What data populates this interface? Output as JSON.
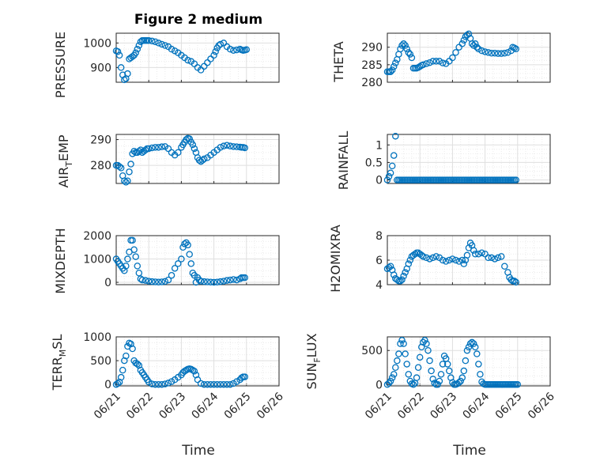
{
  "figure": {
    "title": "Figure 2 medium",
    "accent_color": "#0072BD"
  },
  "chart_data": [
    {
      "type": "scatter",
      "var": "pressure",
      "title": "Figure 2 medium",
      "ylabel": "PRESSURE",
      "ylim": [
        840,
        1040
      ],
      "yticks": [
        900,
        1000
      ],
      "xlim": [
        0,
        5
      ],
      "xticks": [
        "06/21",
        "06/22",
        "06/23",
        "06/24",
        "06/25",
        "06/26"
      ],
      "xlabel": "",
      "x": [
        0.0,
        0.05,
        0.1,
        0.15,
        0.2,
        0.25,
        0.3,
        0.35,
        0.4,
        0.45,
        0.5,
        0.55,
        0.6,
        0.65,
        0.7,
        0.75,
        0.8,
        0.85,
        0.9,
        0.95,
        1.0,
        1.1,
        1.2,
        1.3,
        1.4,
        1.5,
        1.6,
        1.7,
        1.8,
        1.9,
        2.0,
        2.1,
        2.2,
        2.3,
        2.4,
        2.5,
        2.6,
        2.7,
        2.8,
        2.9,
        3.0,
        3.05,
        3.1,
        3.15,
        3.2,
        3.3,
        3.4,
        3.5,
        3.6,
        3.7,
        3.8,
        3.85,
        3.9,
        3.95,
        4.0
      ],
      "y": [
        968,
        965,
        950,
        900,
        870,
        850,
        855,
        875,
        935,
        940,
        945,
        950,
        960,
        975,
        990,
        1005,
        1010,
        1010,
        1010,
        1010,
        1010,
        1008,
        1005,
        1000,
        995,
        990,
        985,
        975,
        968,
        960,
        950,
        940,
        930,
        925,
        915,
        900,
        890,
        905,
        920,
        935,
        950,
        965,
        980,
        990,
        995,
        1000,
        985,
        975,
        970,
        972,
        975,
        972,
        970,
        971,
        973
      ]
    },
    {
      "type": "scatter",
      "var": "theta",
      "title": "",
      "ylabel": "THETA",
      "ylim": [
        280,
        294
      ],
      "yticks": [
        280,
        285,
        290
      ],
      "xlim": [
        0,
        5
      ],
      "xticks": [
        "06/21",
        "06/22",
        "06/23",
        "06/24",
        "06/25",
        "06/26"
      ],
      "xlabel": "",
      "x": [
        0.0,
        0.05,
        0.1,
        0.15,
        0.2,
        0.25,
        0.3,
        0.35,
        0.4,
        0.45,
        0.5,
        0.55,
        0.6,
        0.65,
        0.7,
        0.75,
        0.8,
        0.85,
        0.9,
        0.95,
        1.0,
        1.05,
        1.1,
        1.2,
        1.3,
        1.4,
        1.5,
        1.6,
        1.7,
        1.8,
        1.9,
        2.0,
        2.1,
        2.2,
        2.3,
        2.35,
        2.4,
        2.45,
        2.5,
        2.55,
        2.6,
        2.65,
        2.7,
        2.75,
        2.8,
        2.9,
        3.0,
        3.1,
        3.2,
        3.3,
        3.4,
        3.5,
        3.6,
        3.7,
        3.8,
        3.85,
        3.9,
        3.95
      ],
      "y": [
        283,
        283,
        283,
        283.5,
        284.5,
        285.5,
        286.5,
        288,
        289.5,
        290.5,
        291,
        290.5,
        289.5,
        288.5,
        288,
        287,
        284,
        284,
        284,
        284.2,
        284.5,
        284.8,
        285,
        285.3,
        285.6,
        286,
        286,
        286,
        285.5,
        285.3,
        286,
        287,
        288.5,
        290,
        291,
        292,
        293,
        293.5,
        293.8,
        292.5,
        291,
        290.5,
        291,
        290,
        289.5,
        289,
        288.7,
        288.5,
        288.3,
        288.3,
        288.2,
        288.2,
        288.3,
        288.5,
        289,
        290,
        289.8,
        289.5
      ]
    },
    {
      "type": "scatter",
      "var": "air_temp",
      "title": "",
      "ylabel": "AIR_TEMP",
      "ylim": [
        273,
        292
      ],
      "yticks": [
        280,
        290
      ],
      "xlim": [
        0,
        5
      ],
      "xticks": [
        "06/21",
        "06/22",
        "06/23",
        "06/24",
        "06/25",
        "06/26"
      ],
      "xlabel": "",
      "x": [
        0.0,
        0.05,
        0.1,
        0.15,
        0.2,
        0.25,
        0.3,
        0.35,
        0.4,
        0.45,
        0.5,
        0.55,
        0.6,
        0.65,
        0.7,
        0.75,
        0.8,
        0.85,
        0.9,
        0.95,
        1.0,
        1.1,
        1.2,
        1.3,
        1.4,
        1.5,
        1.6,
        1.7,
        1.8,
        1.9,
        2.0,
        2.05,
        2.1,
        2.15,
        2.2,
        2.25,
        2.3,
        2.35,
        2.4,
        2.45,
        2.5,
        2.55,
        2.6,
        2.65,
        2.7,
        2.8,
        2.9,
        3.0,
        3.1,
        3.2,
        3.3,
        3.4,
        3.5,
        3.6,
        3.7,
        3.8,
        3.85,
        3.9,
        3.95
      ],
      "y": [
        280,
        280,
        279.5,
        279,
        276,
        274,
        273.5,
        274,
        277.5,
        280.5,
        284.5,
        285.5,
        285,
        285,
        285.5,
        286,
        285,
        285.5,
        286,
        286.5,
        286.5,
        286.8,
        287,
        287,
        287.2,
        287.3,
        286.5,
        285,
        284,
        285,
        287,
        288,
        289,
        290,
        290.5,
        290.3,
        289,
        288,
        286.5,
        285,
        283,
        282,
        281.5,
        282,
        282.5,
        283,
        284,
        285,
        286,
        287,
        287.5,
        287.8,
        287.5,
        287.3,
        287.2,
        287.1,
        287,
        287,
        286.8
      ]
    },
    {
      "type": "scatter",
      "var": "rainfall",
      "title": "",
      "ylabel": "RAINFALL",
      "ylim": [
        -0.1,
        1.3
      ],
      "yticks": [
        0,
        0.5,
        1
      ],
      "xlim": [
        0,
        5
      ],
      "xticks": [
        "06/21",
        "06/22",
        "06/23",
        "06/24",
        "06/25",
        "06/26"
      ],
      "xlabel": "",
      "x": [
        0.0,
        0.05,
        0.1,
        0.15,
        0.2,
        0.25,
        0.3,
        0.35,
        0.4,
        0.45,
        0.5,
        0.55,
        0.6,
        0.65,
        0.7,
        0.75,
        0.8,
        0.85,
        0.9,
        0.95,
        1.0,
        1.05,
        1.1,
        1.15,
        1.2,
        1.25,
        1.3,
        1.35,
        1.4,
        1.45,
        1.5,
        1.55,
        1.6,
        1.65,
        1.7,
        1.75,
        1.8,
        1.85,
        1.9,
        1.95,
        2.0,
        2.05,
        2.1,
        2.15,
        2.2,
        2.25,
        2.3,
        2.35,
        2.4,
        2.45,
        2.5,
        2.55,
        2.6,
        2.65,
        2.7,
        2.75,
        2.8,
        2.85,
        2.9,
        2.95,
        3.0,
        3.05,
        3.1,
        3.15,
        3.2,
        3.25,
        3.3,
        3.35,
        3.4,
        3.45,
        3.5,
        3.55,
        3.6,
        3.65,
        3.7,
        3.75,
        3.8,
        3.85,
        3.9,
        3.95
      ],
      "y": [
        0,
        0.1,
        0.2,
        0.4,
        0.7,
        1.25,
        0,
        0,
        0,
        0,
        0,
        0,
        0,
        0,
        0,
        0,
        0,
        0,
        0,
        0,
        0,
        0,
        0,
        0,
        0,
        0,
        0,
        0,
        0,
        0,
        0,
        0,
        0,
        0,
        0,
        0,
        0,
        0,
        0,
        0,
        0,
        0,
        0,
        0,
        0,
        0,
        0,
        0,
        0,
        0,
        0,
        0,
        0,
        0,
        0,
        0,
        0,
        0,
        0,
        0,
        0,
        0,
        0,
        0,
        0,
        0,
        0,
        0,
        0,
        0,
        0,
        0,
        0,
        0,
        0,
        0,
        0,
        0,
        0,
        0
      ]
    },
    {
      "type": "scatter",
      "var": "mixdepth",
      "title": "",
      "ylabel": "MIXDEPTH",
      "ylim": [
        -100,
        2000
      ],
      "yticks": [
        0,
        1000,
        2000
      ],
      "xlim": [
        0,
        5
      ],
      "xticks": [
        "06/21",
        "06/22",
        "06/23",
        "06/24",
        "06/25",
        "06/26"
      ],
      "xlabel": "",
      "x": [
        0.0,
        0.05,
        0.1,
        0.15,
        0.2,
        0.25,
        0.3,
        0.35,
        0.4,
        0.45,
        0.5,
        0.55,
        0.6,
        0.65,
        0.7,
        0.75,
        0.8,
        0.9,
        1.0,
        1.1,
        1.2,
        1.3,
        1.4,
        1.5,
        1.6,
        1.7,
        1.8,
        1.9,
        2.0,
        2.05,
        2.1,
        2.15,
        2.2,
        2.25,
        2.3,
        2.35,
        2.4,
        2.45,
        2.5,
        2.55,
        2.6,
        2.7,
        2.8,
        2.9,
        3.0,
        3.1,
        3.2,
        3.3,
        3.4,
        3.5,
        3.6,
        3.7,
        3.8,
        3.85,
        3.9,
        3.95
      ],
      "y": [
        1000,
        900,
        800,
        700,
        600,
        500,
        700,
        1000,
        1300,
        1800,
        1800,
        1400,
        1100,
        700,
        400,
        150,
        100,
        80,
        50,
        30,
        20,
        10,
        20,
        40,
        100,
        300,
        600,
        800,
        1000,
        1500,
        1650,
        1700,
        1600,
        1200,
        800,
        400,
        300,
        0,
        200,
        100,
        50,
        30,
        20,
        10,
        0,
        10,
        30,
        50,
        80,
        100,
        120,
        100,
        150,
        200,
        200,
        200
      ]
    },
    {
      "type": "scatter",
      "var": "h2omixra",
      "title": "",
      "ylabel": "H2OMIXRA",
      "ylim": [
        4,
        8
      ],
      "yticks": [
        4,
        6,
        8
      ],
      "xlim": [
        0,
        5
      ],
      "xticks": [
        "06/21",
        "06/22",
        "06/23",
        "06/24",
        "06/25",
        "06/26"
      ],
      "xlabel": "",
      "x": [
        0.0,
        0.05,
        0.1,
        0.15,
        0.2,
        0.25,
        0.3,
        0.35,
        0.4,
        0.45,
        0.5,
        0.55,
        0.6,
        0.65,
        0.7,
        0.75,
        0.8,
        0.85,
        0.9,
        0.95,
        1.0,
        1.05,
        1.1,
        1.2,
        1.3,
        1.4,
        1.5,
        1.6,
        1.7,
        1.8,
        1.9,
        2.0,
        2.1,
        2.2,
        2.3,
        2.35,
        2.4,
        2.45,
        2.5,
        2.55,
        2.6,
        2.65,
        2.7,
        2.8,
        2.9,
        3.0,
        3.1,
        3.2,
        3.3,
        3.4,
        3.5,
        3.6,
        3.7,
        3.75,
        3.8,
        3.85,
        3.9,
        3.95
      ],
      "y": [
        5.3,
        5.4,
        5.5,
        5.2,
        4.8,
        4.5,
        4.4,
        4.3,
        4.3,
        4.4,
        4.7,
        5.0,
        5.3,
        5.7,
        6.0,
        6.3,
        6.4,
        6.5,
        6.6,
        6.6,
        6.5,
        6.4,
        6.3,
        6.2,
        6.1,
        6.2,
        6.3,
        6.2,
        6.0,
        5.9,
        6.0,
        6.1,
        6.0,
        5.9,
        6.0,
        5.7,
        6.0,
        6.4,
        7.0,
        7.4,
        7.2,
        6.8,
        6.5,
        6.5,
        6.6,
        6.5,
        6.2,
        6.2,
        6.1,
        6.2,
        6.3,
        5.5,
        5.0,
        4.6,
        4.4,
        4.3,
        4.3,
        4.2
      ]
    },
    {
      "type": "scatter",
      "var": "terr_msl",
      "title": "",
      "ylabel": "TERR_MSL",
      "ylim": [
        -30,
        1000
      ],
      "yticks": [
        0,
        500,
        1000
      ],
      "xlim": [
        0,
        5
      ],
      "xticks": [
        "06/21",
        "06/22",
        "06/23",
        "06/24",
        "06/25",
        "06/26"
      ],
      "xlabel": "Time",
      "x": [
        0.0,
        0.05,
        0.1,
        0.15,
        0.2,
        0.25,
        0.3,
        0.35,
        0.4,
        0.45,
        0.5,
        0.55,
        0.6,
        0.65,
        0.7,
        0.75,
        0.8,
        0.85,
        0.9,
        0.95,
        1.0,
        1.1,
        1.2,
        1.3,
        1.4,
        1.5,
        1.6,
        1.7,
        1.8,
        1.9,
        2.0,
        2.05,
        2.1,
        2.15,
        2.2,
        2.25,
        2.3,
        2.35,
        2.4,
        2.45,
        2.5,
        2.6,
        2.7,
        2.8,
        2.9,
        3.0,
        3.1,
        3.2,
        3.3,
        3.4,
        3.5,
        3.6,
        3.7,
        3.8,
        3.85,
        3.9,
        3.95
      ],
      "y": [
        0,
        20,
        50,
        150,
        300,
        500,
        600,
        800,
        870,
        850,
        750,
        500,
        450,
        430,
        400,
        300,
        250,
        200,
        150,
        100,
        50,
        10,
        0,
        0,
        0,
        10,
        30,
        60,
        100,
        150,
        200,
        250,
        280,
        300,
        320,
        330,
        320,
        300,
        280,
        200,
        100,
        20,
        0,
        0,
        0,
        0,
        0,
        0,
        0,
        0,
        0,
        20,
        60,
        100,
        140,
        160,
        160
      ]
    },
    {
      "type": "scatter",
      "var": "sun_flux",
      "title": "",
      "ylabel": "SUN_FLUX",
      "ylim": [
        -20,
        700
      ],
      "yticks": [
        0,
        500
      ],
      "xlim": [
        0,
        5
      ],
      "xticks": [
        "06/21",
        "06/22",
        "06/23",
        "06/24",
        "06/25",
        "06/26"
      ],
      "xlabel": "Time",
      "x": [
        0.0,
        0.05,
        0.1,
        0.15,
        0.2,
        0.25,
        0.3,
        0.35,
        0.4,
        0.45,
        0.5,
        0.55,
        0.6,
        0.65,
        0.7,
        0.75,
        0.8,
        0.85,
        0.9,
        0.95,
        1.0,
        1.05,
        1.1,
        1.15,
        1.2,
        1.25,
        1.3,
        1.35,
        1.4,
        1.45,
        1.5,
        1.55,
        1.6,
        1.65,
        1.7,
        1.75,
        1.8,
        1.85,
        1.9,
        1.95,
        2.0,
        2.05,
        2.1,
        2.15,
        2.2,
        2.25,
        2.3,
        2.35,
        2.4,
        2.45,
        2.5,
        2.55,
        2.6,
        2.65,
        2.7,
        2.75,
        2.8,
        2.85,
        2.9,
        2.95,
        3.0,
        3.05,
        3.1,
        3.15,
        3.2,
        3.25,
        3.3,
        3.35,
        3.4,
        3.45,
        3.5,
        3.55,
        3.6,
        3.65,
        3.7,
        3.75,
        3.8,
        3.85,
        3.9,
        3.95,
        4.0
      ],
      "y": [
        0,
        20,
        50,
        100,
        150,
        250,
        350,
        450,
        600,
        650,
        600,
        450,
        300,
        150,
        50,
        10,
        0,
        20,
        100,
        250,
        400,
        550,
        620,
        650,
        600,
        500,
        350,
        200,
        80,
        20,
        0,
        0,
        50,
        150,
        300,
        420,
        380,
        300,
        200,
        100,
        30,
        0,
        0,
        10,
        30,
        50,
        100,
        200,
        350,
        500,
        550,
        600,
        620,
        600,
        550,
        450,
        300,
        150,
        40,
        10,
        0,
        0,
        0,
        0,
        0,
        0,
        0,
        0,
        0,
        0,
        0,
        0,
        0,
        0,
        0,
        0,
        0,
        0,
        0,
        0,
        0
      ]
    }
  ],
  "panel_labels": {
    "pressure": "PRESSURE",
    "theta": "THETA",
    "air_temp_main": "AIR",
    "air_temp_sub": "T",
    "air_temp_tail": "EMP",
    "rainfall": "RAINFALL",
    "mixdepth": "MIXDEPTH",
    "h2omixra": "H2OMIXRA",
    "terr_main": "TERR",
    "terr_sub": "M",
    "terr_tail": "SL",
    "sun_main": "SUN",
    "sun_sub": "F",
    "sun_tail": "LUX"
  },
  "xaxis": {
    "label": "Time",
    "ticks": [
      "06/21",
      "06/22",
      "06/23",
      "06/24",
      "06/25",
      "06/26"
    ]
  }
}
